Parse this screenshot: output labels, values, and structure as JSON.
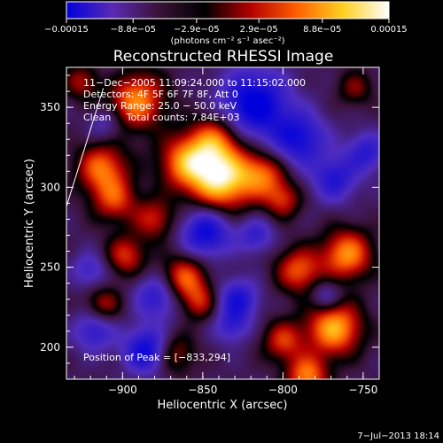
{
  "chart_data": {
    "type": "heatmap",
    "title": "Reconstructed RHESSI Image",
    "xlabel": "Heliocentric X (arcsec)",
    "ylabel": "Heliocentric Y (arcsec)",
    "xlim": [
      -935,
      -740
    ],
    "ylim": [
      180,
      375
    ],
    "x_ticks": [
      -900,
      -850,
      -800,
      -750
    ],
    "y_ticks": [
      200,
      250,
      300,
      350
    ],
    "x_tick_labels": [
      "−900",
      "−850",
      "−800",
      "−750"
    ],
    "y_tick_labels": [
      "200",
      "250",
      "300",
      "350"
    ],
    "colorbar": {
      "range": [
        -0.00015,
        0.00015
      ],
      "ticks": [
        -0.00015,
        -8.8e-05,
        -2.9e-05,
        2.9e-05,
        8.8e-05,
        0.00015
      ],
      "tick_labels": [
        "−0.00015",
        "−8.8e−05",
        "−2.9e−05",
        "2.9e−05",
        "8.8e−05",
        "0.00015"
      ],
      "units": "(photons cm⁻² s⁻¹ asec⁻²)",
      "colormap": [
        "#0000dc",
        "#5a2ab4",
        "#3a1238",
        "#000000",
        "#b40000",
        "#ff6000",
        "#ffd020",
        "#ffffff"
      ]
    },
    "peak": [
      -833,
      294
    ],
    "blobs": [
      {
        "x": -838,
        "y": 305,
        "r": 14,
        "a": 1.05
      },
      {
        "x": -860,
        "y": 316,
        "r": 12,
        "a": 0.75
      },
      {
        "x": -842,
        "y": 330,
        "r": 11,
        "a": 0.6
      },
      {
        "x": -893,
        "y": 355,
        "r": 13,
        "a": 0.85
      },
      {
        "x": -913,
        "y": 312,
        "r": 11,
        "a": 0.7
      },
      {
        "x": -905,
        "y": 292,
        "r": 10,
        "a": 0.55
      },
      {
        "x": -880,
        "y": 280,
        "r": 9,
        "a": 0.5
      },
      {
        "x": -898,
        "y": 257,
        "r": 9,
        "a": 0.55
      },
      {
        "x": -862,
        "y": 243,
        "r": 10,
        "a": 0.7
      },
      {
        "x": -852,
        "y": 228,
        "r": 8,
        "a": 0.45
      },
      {
        "x": -812,
        "y": 308,
        "r": 10,
        "a": 0.6
      },
      {
        "x": -800,
        "y": 292,
        "r": 8,
        "a": 0.5
      },
      {
        "x": -790,
        "y": 248,
        "r": 10,
        "a": 0.65
      },
      {
        "x": -760,
        "y": 258,
        "r": 11,
        "a": 0.8
      },
      {
        "x": -768,
        "y": 212,
        "r": 12,
        "a": 0.9
      },
      {
        "x": -800,
        "y": 204,
        "r": 9,
        "a": 0.55
      },
      {
        "x": -785,
        "y": 182,
        "r": 9,
        "a": 0.75
      },
      {
        "x": -868,
        "y": 196,
        "r": 9,
        "a": 0.45
      },
      {
        "x": -912,
        "y": 227,
        "r": 8,
        "a": 0.45
      },
      {
        "x": -755,
        "y": 362,
        "r": 8,
        "a": 0.35
      },
      {
        "x": -925,
        "y": 366,
        "r": 8,
        "a": 0.45
      },
      {
        "x": -905,
        "y": 365,
        "r": -11,
        "a": -0.2
      },
      {
        "x": -818,
        "y": 352,
        "r": 15,
        "a": -0.85
      },
      {
        "x": -790,
        "y": 330,
        "r": 12,
        "a": -0.65
      },
      {
        "x": -768,
        "y": 305,
        "r": 10,
        "a": -0.55
      },
      {
        "x": -748,
        "y": 322,
        "r": 9,
        "a": -0.5
      },
      {
        "x": -848,
        "y": 272,
        "r": 11,
        "a": -0.75
      },
      {
        "x": -878,
        "y": 232,
        "r": 10,
        "a": -0.55
      },
      {
        "x": -885,
        "y": 198,
        "r": 10,
        "a": -0.75
      },
      {
        "x": -918,
        "y": 210,
        "r": 9,
        "a": -0.5
      },
      {
        "x": -828,
        "y": 230,
        "r": 9,
        "a": -0.6
      },
      {
        "x": -817,
        "y": 270,
        "r": 8,
        "a": -0.45
      },
      {
        "x": -832,
        "y": 213,
        "r": 8,
        "a": -0.4
      },
      {
        "x": -773,
        "y": 232,
        "r": 7,
        "a": -0.4
      },
      {
        "x": -910,
        "y": 340,
        "r": 8,
        "a": -0.35
      },
      {
        "x": -920,
        "y": 248,
        "r": 8,
        "a": -0.4
      }
    ]
  },
  "annotations": {
    "time_range": "11−Dec−2005 11:09:24.000 to 11:15:02.000",
    "detectors": "Detectors: 4F 5F 6F 7F 8F, Att 0",
    "energy": "Energy Range: 25.0 − 50.0 keV",
    "clean": "Clean     Total counts: 7.84E+03",
    "peak": "Position of Peak = [−833,294]",
    "timestamp": "7−Jul−2013 18:14"
  }
}
